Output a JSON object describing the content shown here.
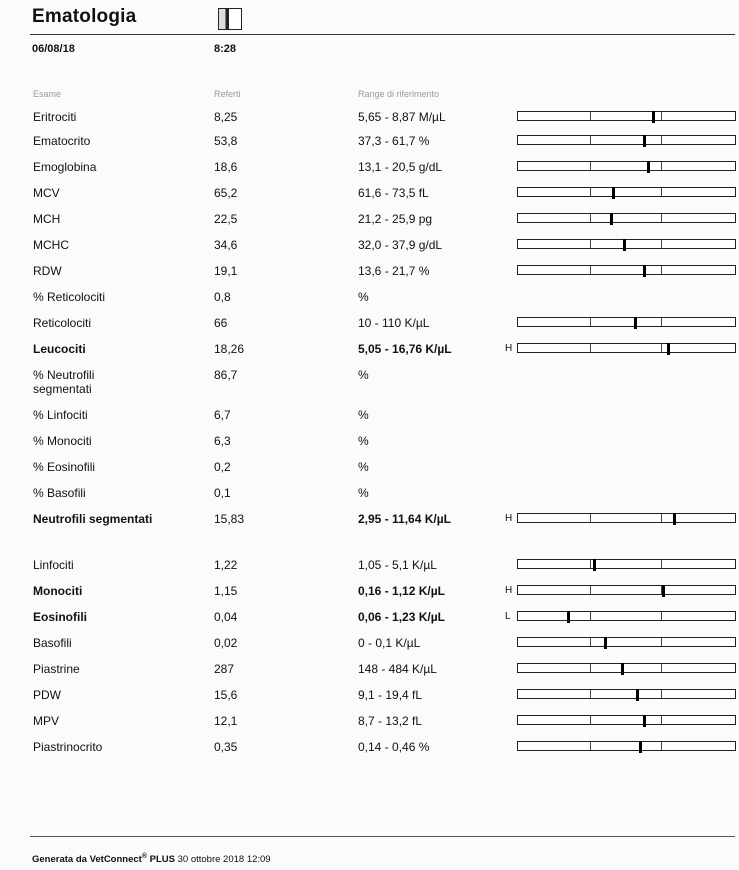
{
  "header": {
    "title": "Ematologia",
    "date": "06/08/18",
    "time": "8:28"
  },
  "columns": {
    "exam": "Esame",
    "result": "Referti",
    "range": "Range di riferimento"
  },
  "rows": [
    {
      "name": "Eritrociti",
      "value": "8,25",
      "range": "5,65 - 8,87 M/µL",
      "flag": "",
      "marker": 0.62,
      "bar": true,
      "bold": false
    },
    {
      "name": "Ematocrito",
      "value": "53,8",
      "range": "37,3 - 61,7 %",
      "flag": "",
      "marker": 0.58,
      "bar": true,
      "bold": false
    },
    {
      "name": "Emoglobina",
      "value": "18,6",
      "range": "13,1 - 20,5 g/dL",
      "flag": "",
      "marker": 0.6,
      "bar": true,
      "bold": false
    },
    {
      "name": "MCV",
      "value": "65,2",
      "range": "61,6 - 73,5 fL",
      "flag": "",
      "marker": 0.44,
      "bar": true,
      "bold": false
    },
    {
      "name": "MCH",
      "value": "22,5",
      "range": "21,2 - 25,9 pg",
      "flag": "",
      "marker": 0.43,
      "bar": true,
      "bold": false
    },
    {
      "name": "MCHC",
      "value": "34,6",
      "range": "32,0 - 37,9 g/dL",
      "flag": "",
      "marker": 0.49,
      "bar": true,
      "bold": false
    },
    {
      "name": "RDW",
      "value": "19,1",
      "range": "13,6 - 21,7 %",
      "flag": "",
      "marker": 0.58,
      "bar": true,
      "bold": false
    },
    {
      "name": "% Reticolociti",
      "value": "0,8",
      "range": "%",
      "flag": "",
      "marker": null,
      "bar": false,
      "bold": false
    },
    {
      "name": "Reticolociti",
      "value": "66",
      "range": "10 - 110 K/µL",
      "flag": "",
      "marker": 0.54,
      "bar": true,
      "bold": false
    },
    {
      "name": "Leucociti",
      "value": "18,26",
      "range": "5,05 - 16,76 K/µL",
      "flag": "H",
      "marker": 0.69,
      "bar": true,
      "bold": true
    },
    {
      "name": "% Neutrofili segmentati",
      "value": "86,7",
      "range": "%",
      "flag": "",
      "marker": null,
      "bar": false,
      "bold": false
    },
    {
      "name": "% Linfociti",
      "value": "6,7",
      "range": "%",
      "flag": "",
      "marker": null,
      "bar": false,
      "bold": false
    },
    {
      "name": "% Monociti",
      "value": "6,3",
      "range": "%",
      "flag": "",
      "marker": null,
      "bar": false,
      "bold": false
    },
    {
      "name": "% Eosinofili",
      "value": "0,2",
      "range": "%",
      "flag": "",
      "marker": null,
      "bar": false,
      "bold": false
    },
    {
      "name": "% Basofili",
      "value": "0,1",
      "range": "%",
      "flag": "",
      "marker": null,
      "bar": false,
      "bold": false
    },
    {
      "name": "Neutrofili segmentati",
      "value": "15,83",
      "range": "2,95 - 11,64 K/µL",
      "flag": "H",
      "marker": 0.72,
      "bar": true,
      "bold": true
    },
    {
      "name": "Linfociti",
      "value": "1,22",
      "range": "1,05 - 5,1 K/µL",
      "flag": "",
      "marker": 0.35,
      "bar": true,
      "bold": false
    },
    {
      "name": "Monociti",
      "value": "1,15",
      "range": "0,16 - 1,12 K/µL",
      "flag": "H",
      "marker": 0.67,
      "bar": true,
      "bold": true
    },
    {
      "name": "Eosinofili",
      "value": "0,04",
      "range": "0,06 - 1,23 K/µL",
      "flag": "L",
      "marker": 0.23,
      "bar": true,
      "bold": true
    },
    {
      "name": "Basofili",
      "value": "0,02",
      "range": "0 - 0,1 K/µL",
      "flag": "",
      "marker": 0.4,
      "bar": true,
      "bold": false
    },
    {
      "name": "Piastrine",
      "value": "287",
      "range": "148 - 484 K/µL",
      "flag": "",
      "marker": 0.48,
      "bar": true,
      "bold": false
    },
    {
      "name": "PDW",
      "value": "15,6",
      "range": "9,1 - 19,4 fL",
      "flag": "",
      "marker": 0.55,
      "bar": true,
      "bold": false
    },
    {
      "name": "MPV",
      "value": "12,1",
      "range": "8,7 - 13,2 fL",
      "flag": "",
      "marker": 0.58,
      "bar": true,
      "bold": false
    },
    {
      "name": "Piastrinocrito",
      "value": "0,35",
      "range": "0,14 - 0,46 %",
      "flag": "",
      "marker": 0.56,
      "bar": true,
      "bold": false
    }
  ],
  "footer": {
    "prefix": "Generata da ",
    "brand": "VetConnect",
    "reg": "®",
    "plus": "PLUS",
    "date": "30 ottobre 2018 12:09"
  }
}
